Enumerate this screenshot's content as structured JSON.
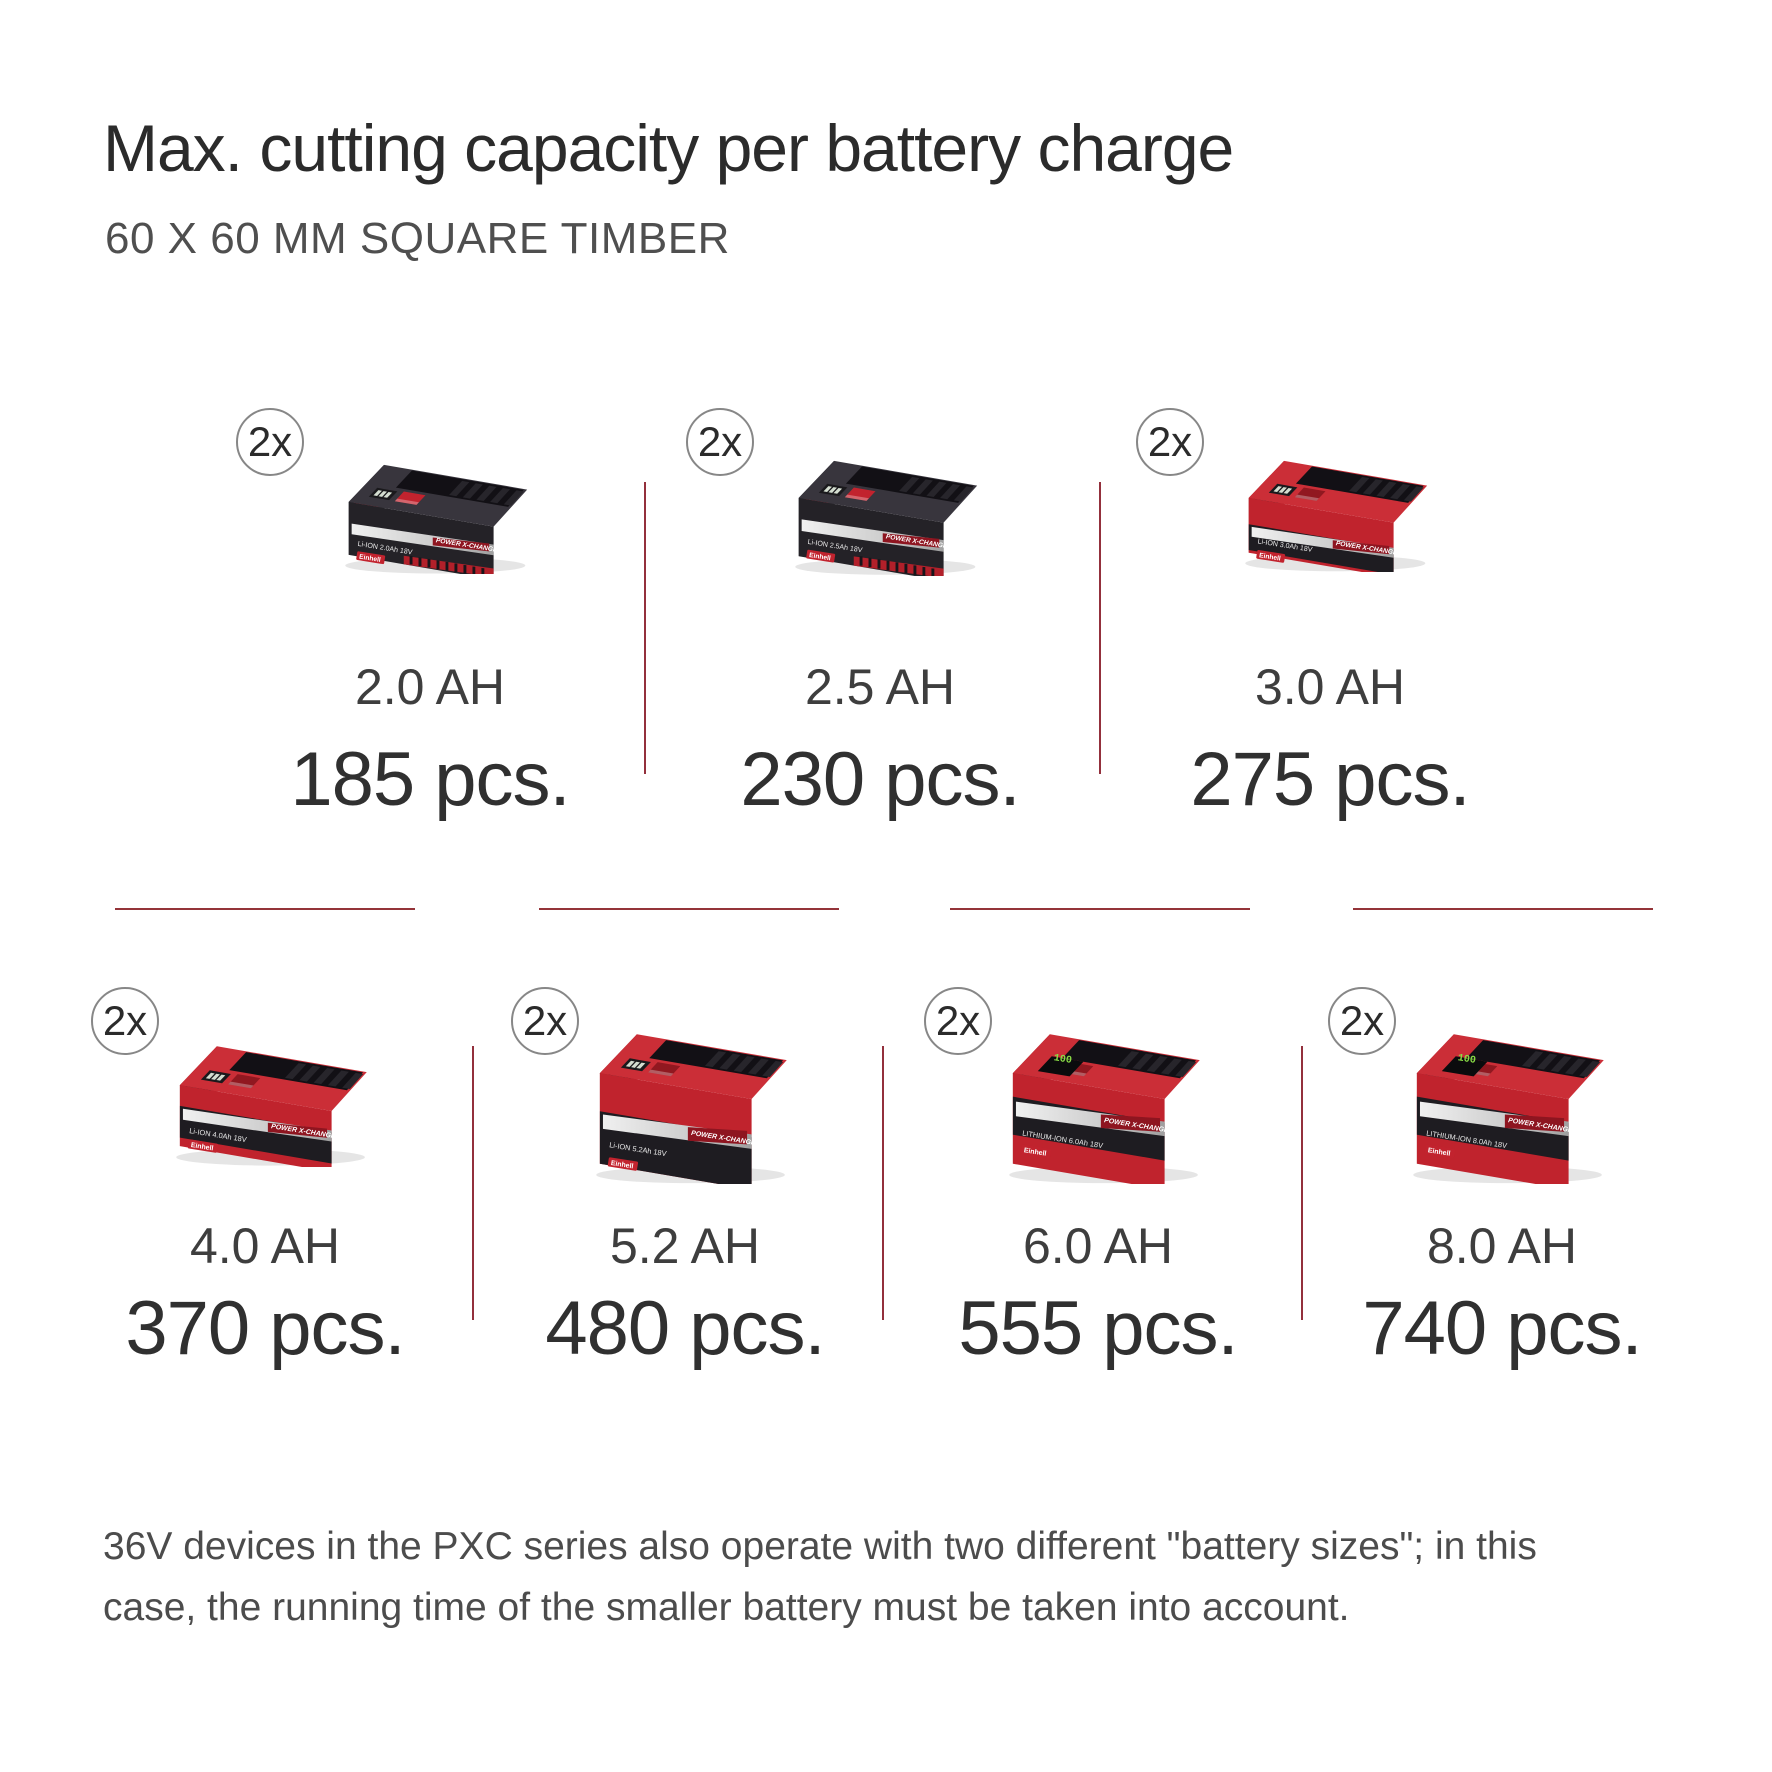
{
  "header": {
    "title": "Max. cutting capacity per battery charge",
    "subtitle": "60 X 60 MM SQUARE TIMBER"
  },
  "rows": [
    {
      "items": [
        {
          "badge": "2x",
          "capacity": "2.0 AH",
          "pieces": "185 pcs.",
          "variant": "black-compact",
          "label": "Li-ION 2.0Ah 18V"
        },
        {
          "badge": "2x",
          "capacity": "2.5 AH",
          "pieces": "230 pcs.",
          "variant": "black-compact-2",
          "label": "Li-ION 2.5Ah 18V"
        },
        {
          "badge": "2x",
          "capacity": "3.0 AH",
          "pieces": "275 pcs.",
          "variant": "red-compact",
          "label": "Li-ION 3.0Ah 18V"
        }
      ]
    },
    {
      "items": [
        {
          "badge": "2x",
          "capacity": "4.0 AH",
          "pieces": "370 pcs.",
          "variant": "red-flat",
          "label": "Li-ION 4.0Ah 18V"
        },
        {
          "badge": "2x",
          "capacity": "5.2 AH",
          "pieces": "480 pcs.",
          "variant": "red-tall-dark",
          "label": "Li-ION 5.2Ah 18V"
        },
        {
          "badge": "2x",
          "capacity": "6.0 AH",
          "pieces": "555 pcs.",
          "variant": "red-tall",
          "label": "LITHIUM-ION 6.0Ah 18V"
        },
        {
          "badge": "2x",
          "capacity": "8.0 AH",
          "pieces": "740 pcs.",
          "variant": "red-tall",
          "label": "LITHIUM-ION 8.0Ah 18V"
        }
      ]
    }
  ],
  "footer": {
    "line1": "36V devices in the PXC series also operate with two different \"battery sizes\"; in this",
    "line2": "case, the running time of the smaller battery must be taken into account."
  },
  "colors": {
    "einhell_red": "#c1242e",
    "divider_red": "#93303c",
    "badge_border": "#878787",
    "title_text": "#2b2b2b",
    "body_text": "#4c4c4c"
  }
}
